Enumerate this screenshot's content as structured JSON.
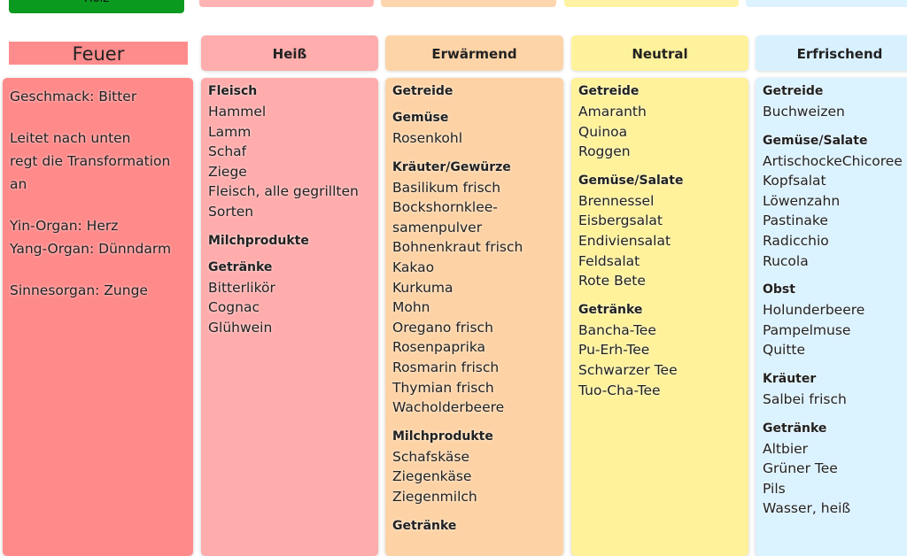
{
  "top_button": "Holz",
  "feuer": {
    "title": "Feuer",
    "paragraphs": [
      [
        "Geschmack: Bitter"
      ],
      [
        "Leitet nach unten",
        "regt die Transformation an"
      ],
      [
        "Yin-Organ: Herz",
        "Yang-Organ: Dünndarm"
      ],
      [
        "Sinnesorgan: Zunge"
      ]
    ]
  },
  "columns": [
    {
      "title": "Heiß",
      "groups": [
        {
          "heading": "Fleisch",
          "items": [
            "Hammel",
            "Lamm",
            "Schaf",
            "Ziege",
            "Fleisch, alle gegrillten",
            "Sorten"
          ]
        },
        {
          "heading": "Milchprodukte",
          "items": []
        },
        {
          "heading": "Getränke",
          "items": [
            "Bitterlikör",
            "Cognac",
            "Glühwein"
          ]
        }
      ]
    },
    {
      "title": "Erwärmend",
      "groups": [
        {
          "heading": "Getreide",
          "items": []
        },
        {
          "heading": "Gemüse",
          "items": [
            "Rosenkohl"
          ]
        },
        {
          "heading": "Kräuter/Gewürze",
          "items": [
            "Basilikum frisch",
            "Bockshornklee-",
            "samenpulver",
            "Bohnenkraut frisch",
            "Kakao",
            "Kurkuma",
            "Mohn",
            "Oregano frisch",
            "Rosenpaprika",
            "Rosmarin frisch",
            "Thymian frisch",
            "Wacholderbeere"
          ]
        },
        {
          "heading": "Milchprodukte",
          "items": [
            "Schafskäse",
            "Ziegenkäse",
            "Ziegenmilch"
          ]
        },
        {
          "heading": "Getränke",
          "items": []
        }
      ]
    },
    {
      "title": "Neutral",
      "groups": [
        {
          "heading": "Getreide",
          "items": [
            "Amaranth",
            "Quinoa",
            "Roggen"
          ]
        },
        {
          "heading": "Gemüse/Salate",
          "items": [
            "Brennessel",
            "Eisbergsalat",
            "Endiviensalat",
            "Feldsalat",
            "Rote Bete"
          ]
        },
        {
          "heading": "Getränke",
          "items": [
            "Bancha-Tee",
            "Pu-Erh-Tee",
            "Schwarzer Tee",
            "Tuo-Cha-Tee"
          ]
        }
      ]
    },
    {
      "title": "Erfrischend",
      "groups": [
        {
          "heading": "Getreide",
          "items": [
            "Buchweizen"
          ]
        },
        {
          "heading": "Gemüse/Salate",
          "items": [
            "ArtischockeChicoree",
            "Kopfsalat",
            "Löwenzahn",
            "Pastinake",
            "Radicchio",
            "Rucola"
          ]
        },
        {
          "heading": "Obst",
          "items": [
            "Holunderbeere",
            "Pampelmuse",
            "Quitte"
          ]
        },
        {
          "heading": "Kräuter",
          "items": [
            "Salbei frisch"
          ]
        },
        {
          "heading": "Getränke",
          "items": [
            "Altbier",
            "Grüner Tee",
            "Pils",
            "Wasser, heiß"
          ]
        }
      ]
    }
  ]
}
